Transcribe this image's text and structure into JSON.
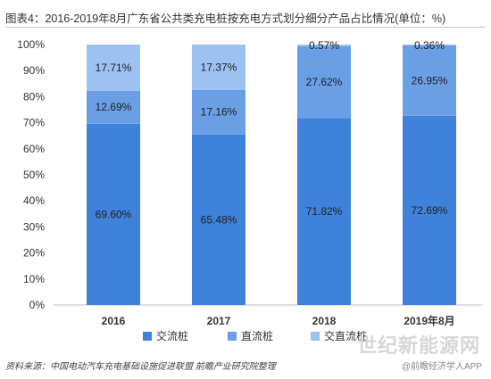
{
  "title": "图表4：2016-2019年8月广东省公共类充电桩按充电方式划分细分产品占比情况(单位：%)",
  "source": "资料来源：中国电动汽车充电基础设施促进联盟 前瞻产业研究院整理",
  "credit": "@前瞻经济学人APP",
  "watermark": "世纪新能源网",
  "chart_data": {
    "type": "bar",
    "stacked": true,
    "categories": [
      "2016",
      "2017",
      "2018",
      "2019年8月"
    ],
    "series": [
      {
        "name": "交流桩",
        "color": "#3f82db",
        "values": [
          69.6,
          65.48,
          71.82,
          72.69
        ],
        "labels": [
          "69.60%",
          "65.48%",
          "71.82%",
          "72.69%"
        ]
      },
      {
        "name": "直流桩",
        "color": "#6a9fe6",
        "values": [
          12.69,
          17.16,
          27.62,
          26.95
        ],
        "labels": [
          "12.69%",
          "17.16%",
          "27.62%",
          "26.95%"
        ]
      },
      {
        "name": "交直流桩",
        "color": "#9cc2f1",
        "values": [
          17.71,
          17.37,
          0.57,
          0.36
        ],
        "labels": [
          "17.71%",
          "17.37%",
          "0.57%",
          "0.36%"
        ]
      }
    ],
    "yticks": [
      "0%",
      "10%",
      "20%",
      "30%",
      "40%",
      "50%",
      "60%",
      "70%",
      "80%",
      "90%",
      "100%"
    ],
    "ylim": [
      0,
      100
    ],
    "legend": "bottom",
    "grid": false
  }
}
